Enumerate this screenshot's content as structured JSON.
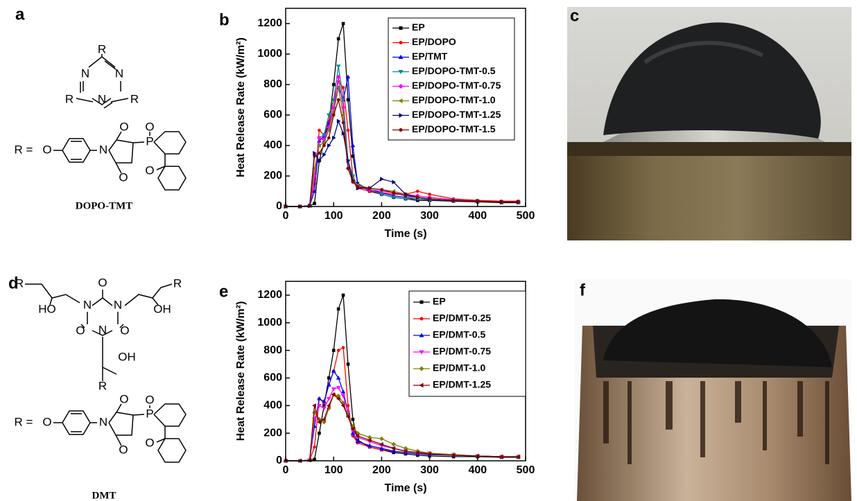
{
  "panel_labels": [
    "a",
    "b",
    "c",
    "d",
    "e",
    "f"
  ],
  "structure_top": {
    "atoms": [
      "R",
      "N",
      "N",
      "R",
      "N",
      "R",
      "R =",
      "O",
      "N",
      "O",
      "O",
      "P",
      "O",
      "O"
    ],
    "caption": "DOPO-TMT"
  },
  "structure_bottom": {
    "atoms": [
      "R",
      "O",
      "R",
      "HO",
      "N",
      "N",
      "OH",
      "O",
      "O",
      "N",
      "OH",
      "R",
      "R =",
      "O",
      "N",
      "O",
      "O",
      "P",
      "O",
      "O"
    ],
    "caption": "DMT"
  },
  "chart_data": [
    {
      "type": "line",
      "xlabel": "Time (s)",
      "ylabel": "Heat Release Rate (kW/m²)",
      "xlim": [
        0,
        500
      ],
      "ylim": [
        0,
        1300
      ],
      "xticks": [
        0,
        100,
        200,
        300,
        400,
        500
      ],
      "yticks": [
        0,
        200,
        400,
        600,
        800,
        1000,
        1200
      ],
      "legend": "upper right",
      "x": [
        0,
        30,
        50,
        60,
        70,
        80,
        90,
        100,
        110,
        120,
        130,
        140,
        150,
        175,
        200,
        225,
        250,
        275,
        300,
        350,
        400,
        450,
        485
      ],
      "series": [
        {
          "name": "EP",
          "color": "#000000",
          "marker": "square",
          "values": [
            0,
            0,
            5,
            20,
            300,
            420,
            550,
            800,
            1100,
            1200,
            700,
            330,
            150,
            100,
            80,
            60,
            50,
            40,
            40,
            35,
            30,
            25,
            25
          ]
        },
        {
          "name": "EP/DOPO",
          "color": "#ff0000",
          "marker": "circle",
          "values": [
            0,
            0,
            5,
            150,
            500,
            470,
            560,
            700,
            820,
            780,
            500,
            200,
            120,
            100,
            90,
            80,
            80,
            100,
            80,
            50,
            40,
            35,
            35
          ]
        },
        {
          "name": "EP/TMT",
          "color": "#0000ff",
          "marker": "up",
          "values": [
            0,
            0,
            5,
            100,
            430,
            460,
            540,
            650,
            780,
            700,
            850,
            400,
            150,
            110,
            90,
            70,
            60,
            50,
            45,
            40,
            35,
            30,
            30
          ]
        },
        {
          "name": "EP/DOPO-TMT-0.5",
          "color": "#008b8b",
          "marker": "down",
          "values": [
            0,
            0,
            5,
            200,
            450,
            470,
            600,
            700,
            920,
            700,
            300,
            200,
            130,
            110,
            80,
            60,
            50,
            50,
            45,
            40,
            35,
            30,
            30
          ]
        },
        {
          "name": "EP/DOPO-TMT-0.75",
          "color": "#ff00ff",
          "marker": "diamond",
          "values": [
            0,
            0,
            5,
            200,
            450,
            440,
            520,
            650,
            850,
            650,
            250,
            180,
            130,
            110,
            100,
            90,
            80,
            70,
            60,
            45,
            35,
            30,
            30
          ]
        },
        {
          "name": "EP/DOPO-TMT-1.0",
          "color": "#808000",
          "marker": "left",
          "values": [
            0,
            0,
            5,
            250,
            400,
            420,
            500,
            620,
            780,
            600,
            250,
            180,
            140,
            120,
            110,
            100,
            80,
            60,
            50,
            40,
            35,
            30,
            30
          ]
        },
        {
          "name": "EP/DOPO-TMT-1.25",
          "color": "#000080",
          "marker": "right",
          "values": [
            0,
            0,
            5,
            350,
            300,
            340,
            400,
            450,
            560,
            480,
            300,
            170,
            120,
            120,
            180,
            160,
            80,
            60,
            50,
            40,
            35,
            30,
            30
          ]
        },
        {
          "name": "EP/DOPO-TMT-1.5",
          "color": "#800000",
          "marker": "circle",
          "values": [
            0,
            0,
            5,
            330,
            350,
            400,
            450,
            600,
            700,
            550,
            250,
            160,
            130,
            120,
            110,
            90,
            70,
            60,
            50,
            40,
            35,
            30,
            30
          ]
        }
      ]
    },
    {
      "type": "line",
      "xlabel": "Time (s)",
      "ylabel": "Heat Release Rate (kW/m²)",
      "xlim": [
        0,
        500
      ],
      "ylim": [
        0,
        1300
      ],
      "xticks": [
        0,
        100,
        200,
        300,
        400,
        500
      ],
      "yticks": [
        0,
        200,
        400,
        600,
        800,
        1000,
        1200
      ],
      "legend": "upper right",
      "x": [
        0,
        30,
        50,
        60,
        70,
        80,
        90,
        100,
        110,
        120,
        130,
        140,
        150,
        175,
        200,
        225,
        250,
        275,
        300,
        350,
        400,
        450,
        485
      ],
      "series": [
        {
          "name": "EP",
          "color": "#000000",
          "marker": "square",
          "values": [
            0,
            0,
            5,
            10,
            200,
            400,
            600,
            800,
            1100,
            1200,
            700,
            300,
            150,
            100,
            80,
            60,
            50,
            40,
            35,
            30,
            30,
            25,
            25
          ]
        },
        {
          "name": "EP/DMT-0.25",
          "color": "#ff0000",
          "marker": "circle",
          "values": [
            0,
            0,
            5,
            100,
            450,
            420,
            550,
            650,
            800,
            820,
            400,
            180,
            130,
            100,
            80,
            70,
            60,
            50,
            45,
            40,
            35,
            30,
            30
          ]
        },
        {
          "name": "EP/DMT-0.5",
          "color": "#0000ff",
          "marker": "up",
          "values": [
            0,
            0,
            5,
            250,
            450,
            430,
            550,
            650,
            600,
            500,
            350,
            200,
            140,
            110,
            90,
            70,
            60,
            50,
            45,
            40,
            35,
            30,
            30
          ]
        },
        {
          "name": "EP/DMT-0.75",
          "color": "#ff00ff",
          "marker": "down",
          "values": [
            0,
            0,
            5,
            300,
            400,
            380,
            450,
            520,
            530,
            470,
            350,
            220,
            170,
            140,
            110,
            90,
            70,
            60,
            55,
            45,
            35,
            30,
            30
          ]
        },
        {
          "name": "EP/DMT-1.0",
          "color": "#808000",
          "marker": "diamond",
          "values": [
            0,
            0,
            5,
            350,
            300,
            280,
            380,
            480,
            470,
            420,
            330,
            250,
            200,
            170,
            160,
            120,
            90,
            70,
            55,
            45,
            35,
            30,
            30
          ]
        },
        {
          "name": "EP/DMT-1.25",
          "color": "#800000",
          "marker": "left",
          "values": [
            0,
            0,
            5,
            400,
            280,
            300,
            400,
            480,
            450,
            400,
            320,
            230,
            180,
            150,
            120,
            90,
            70,
            60,
            50,
            40,
            35,
            30,
            30
          ]
        }
      ]
    }
  ]
}
